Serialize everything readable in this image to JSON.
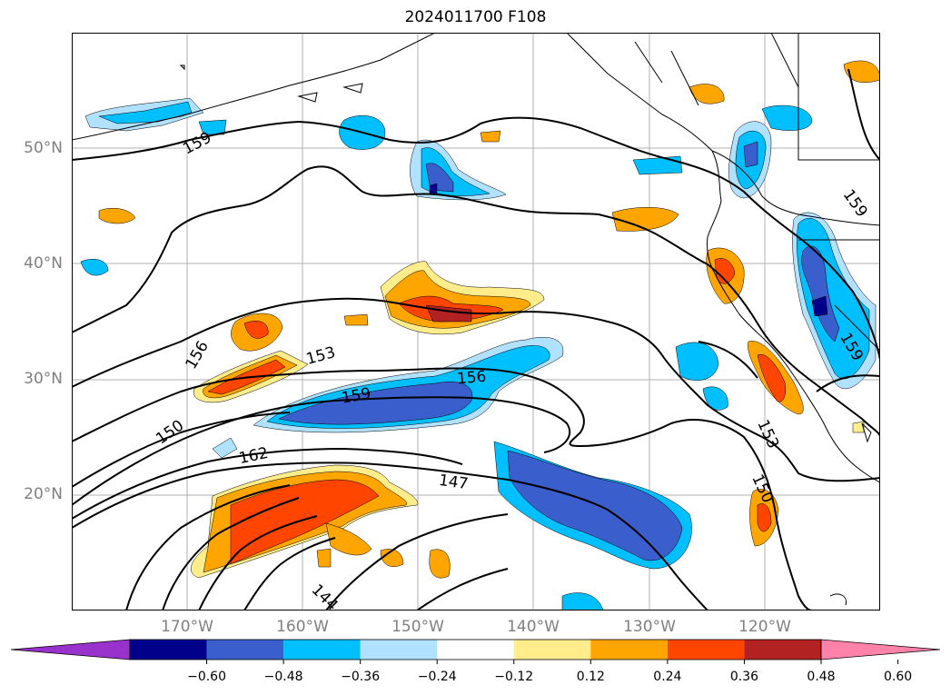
{
  "title": "2024011700 F108",
  "map": {
    "projection": "plate carree",
    "lon_range": [
      -180,
      -110
    ],
    "lat_range": [
      10,
      60
    ],
    "lat_labels": [
      "20°N",
      "30°N",
      "40°N",
      "50°N"
    ],
    "lon_labels": [
      "170°W",
      "160°W",
      "150°W",
      "140°W",
      "130°W",
      "120°W"
    ],
    "grid": true,
    "contour_labels": [
      "159",
      "156",
      "153",
      "150",
      "162",
      "147",
      "144",
      "159",
      "156",
      "153",
      "150",
      "159",
      "159"
    ]
  },
  "colorbar": {
    "ticks": [
      "−0.60",
      "−0.48",
      "−0.36",
      "−0.24",
      "−0.12",
      "0.12",
      "0.24",
      "0.36",
      "0.48",
      "0.60"
    ],
    "colors": [
      "#9932cc",
      "#00008b",
      "#3a5fcd",
      "#00bfff",
      "#b0e2ff",
      "#ffffff",
      "#ffec8b",
      "#ffa500",
      "#ff4500",
      "#b22222",
      "#ff82ab"
    ],
    "extend": "both"
  }
}
